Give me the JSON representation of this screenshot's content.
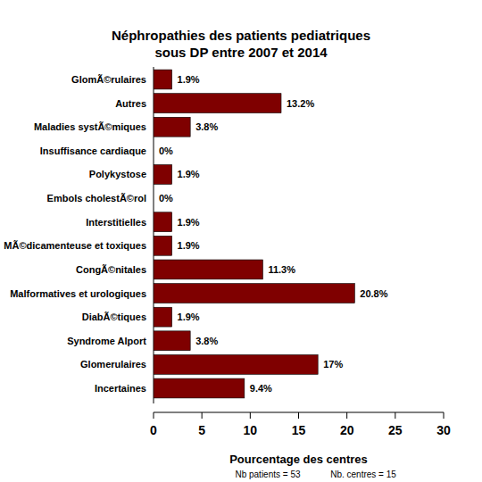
{
  "chart_data": {
    "type": "bar",
    "orientation": "horizontal",
    "title": "Néphropathies des patients pediatriques\nsous DP entre 2007 et 2014",
    "x_label": "Pourcentage des centres",
    "annotations": [
      "Nb patients =  53",
      "Nb. centres =  15"
    ],
    "categories": [
      "GlomÃ©rulaires",
      "Autres",
      "Maladies systÃ©miques",
      "Insuffisance cardiaque",
      "Polykystose",
      "Embols cholestÃ©rol",
      "Interstitielles",
      "MÃ©dicamenteuse et toxiques",
      "CongÃ©nitales",
      "Malformatives et urologiques",
      "DiabÃ©tiques",
      "Syndrome Alport",
      "Glomerulaires",
      "Incertaines"
    ],
    "values": [
      1.9,
      13.2,
      3.8,
      0,
      1.9,
      0,
      1.9,
      1.9,
      11.3,
      20.8,
      1.9,
      3.8,
      17,
      9.4
    ],
    "value_labels": [
      "1.9%",
      "13.2%",
      "3.8%",
      "0%",
      "1.9%",
      "0%",
      "1.9%",
      "1.9%",
      "11.3%",
      "20.8%",
      "1.9%",
      "3.8%",
      "17%",
      "9.4%"
    ],
    "data_labels": true,
    "color": "#7f0000",
    "xlim": [
      0,
      30
    ],
    "xticks": [
      0,
      5,
      10,
      15,
      20,
      25,
      30
    ],
    "grid": false
  }
}
